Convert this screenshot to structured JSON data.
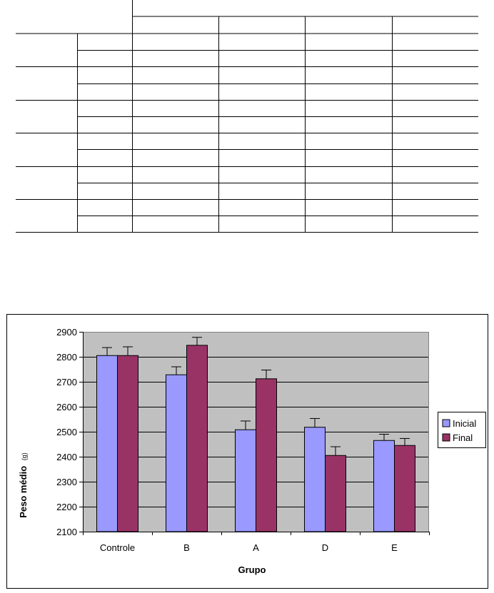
{
  "table": {
    "header_cells": [],
    "rows": []
  },
  "chart_data": {
    "type": "bar",
    "title": "",
    "xlabel": "Grupo",
    "ylabel": "Peso médio",
    "ylabel_unit": "(g)",
    "categories": [
      "Controle",
      "B",
      "A",
      "D",
      "E"
    ],
    "ylim": [
      2100,
      2900
    ],
    "yticks": [
      2100,
      2200,
      2300,
      2400,
      2500,
      2600,
      2700,
      2800,
      2900
    ],
    "grid": true,
    "legend_position": "right",
    "series": [
      {
        "name": "Inicial",
        "color": "#9999ff",
        "values": [
          2805,
          2728,
          2508,
          2518,
          2465
        ],
        "errors": [
          32,
          32,
          35,
          35,
          25
        ]
      },
      {
        "name": "Final",
        "color": "#993366",
        "values": [
          2805,
          2846,
          2712,
          2405,
          2445
        ],
        "errors": [
          35,
          32,
          35,
          35,
          28
        ]
      }
    ],
    "plot_background": "#c0c0c0"
  }
}
